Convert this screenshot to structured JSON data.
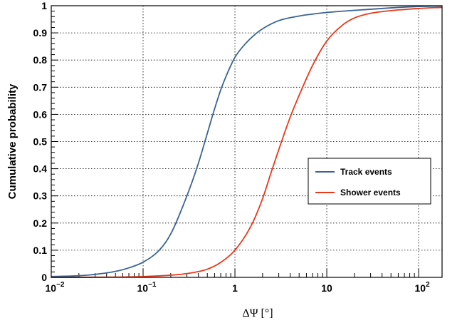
{
  "chart_data": {
    "type": "line",
    "title": "",
    "xlabel": "ΔΨ [°]",
    "ylabel": "Cumulative probability",
    "xscale": "log",
    "xlim": [
      0.01,
      180
    ],
    "ylim": [
      0,
      1
    ],
    "grid": true,
    "legend_position": "center-right",
    "x_ticks": [
      {
        "value": 0.01,
        "mantissa": "10",
        "exp": "−2"
      },
      {
        "value": 0.1,
        "mantissa": "10",
        "exp": "−1"
      },
      {
        "value": 1,
        "mantissa": "1",
        "exp": ""
      },
      {
        "value": 10,
        "mantissa": "10",
        "exp": ""
      },
      {
        "value": 100,
        "mantissa": "10",
        "exp": "2"
      }
    ],
    "y_ticks": [
      "0",
      "0.1",
      "0.2",
      "0.3",
      "0.4",
      "0.5",
      "0.6",
      "0.7",
      "0.8",
      "0.9",
      "1"
    ],
    "series": [
      {
        "name": "Track events",
        "color": "#3a6494",
        "x": [
          0.01,
          0.02,
          0.03,
          0.05,
          0.07,
          0.1,
          0.15,
          0.2,
          0.3,
          0.4,
          0.5,
          0.6,
          0.7,
          0.8,
          1,
          1.3,
          1.6,
          2,
          3,
          5,
          10,
          20,
          50,
          100,
          180
        ],
        "y": [
          0.003,
          0.006,
          0.011,
          0.022,
          0.035,
          0.056,
          0.1,
          0.16,
          0.3,
          0.42,
          0.53,
          0.62,
          0.69,
          0.74,
          0.81,
          0.86,
          0.89,
          0.915,
          0.945,
          0.962,
          0.975,
          0.983,
          0.992,
          0.997,
          0.999
        ]
      },
      {
        "name": "Shower events",
        "color": "#e8391a",
        "x": [
          0.01,
          0.05,
          0.1,
          0.2,
          0.3,
          0.5,
          0.7,
          1,
          1.5,
          2,
          2.5,
          3,
          4,
          5,
          7,
          10,
          15,
          20,
          30,
          50,
          70,
          100,
          180
        ],
        "y": [
          0,
          0.001,
          0.003,
          0.008,
          0.014,
          0.03,
          0.055,
          0.1,
          0.19,
          0.29,
          0.39,
          0.47,
          0.59,
          0.67,
          0.78,
          0.87,
          0.93,
          0.955,
          0.972,
          0.982,
          0.986,
          0.99,
          0.994
        ]
      }
    ]
  }
}
